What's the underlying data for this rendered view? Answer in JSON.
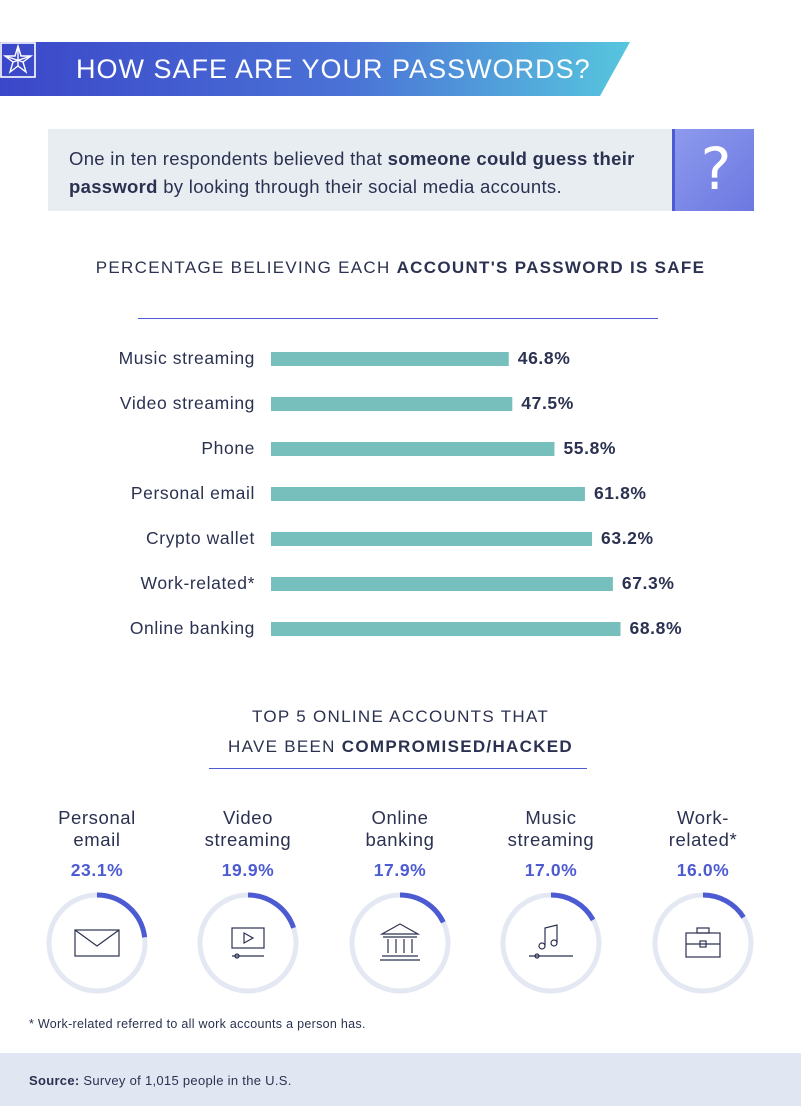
{
  "header": {
    "title": "HOW SAFE ARE YOUR PASSWORDS?"
  },
  "callout": {
    "text_before": "One in ten respondents believed that ",
    "text_bold_1": "someone could guess their",
    "text_bold_2": "password",
    "text_after": " by looking through their social media accounts.",
    "icon_glyph": "?"
  },
  "section1": {
    "title_plain": "PERCENTAGE BELIEVING EACH ",
    "title_bold": "ACCOUNT'S PASSWORD IS SAFE"
  },
  "section2": {
    "title_line1": "TOP 5 ONLINE ACCOUNTS THAT",
    "title_line2_plain": "HAVE BEEN ",
    "title_line2_bold": "COMPROMISED/HACKED"
  },
  "colors": {
    "bar": "#76bfbc",
    "accent": "#4d5bd3",
    "ring_track": "#e3e8f3",
    "text": "#2b3150",
    "banner_from": "#3b47c9",
    "banner_to": "#54c3dd"
  },
  "chart_data": [
    {
      "type": "bar",
      "orientation": "horizontal",
      "title": "PERCENTAGE BELIEVING EACH ACCOUNT'S PASSWORD IS SAFE",
      "categories": [
        "Music streaming",
        "Video streaming",
        "Phone",
        "Personal email",
        "Crypto wallet",
        "Work-related*",
        "Online banking"
      ],
      "values": [
        46.8,
        47.5,
        55.8,
        61.8,
        63.2,
        67.3,
        68.8
      ],
      "value_labels": [
        "46.8%",
        "47.5%",
        "55.8%",
        "61.8%",
        "63.2%",
        "67.3%",
        "68.8%"
      ],
      "xlim": [
        0,
        100
      ],
      "grid": false
    },
    {
      "type": "pie",
      "style": "ring-progress",
      "title": "TOP 5 ONLINE ACCOUNTS THAT HAVE BEEN COMPROMISED/HACKED",
      "items": [
        {
          "label_lines": [
            "Personal",
            "email"
          ],
          "value": 23.1,
          "value_label": "23.1%",
          "icon": "envelope-icon"
        },
        {
          "label_lines": [
            "Video",
            "streaming"
          ],
          "value": 19.9,
          "value_label": "19.9%",
          "icon": "video-player-icon"
        },
        {
          "label_lines": [
            "Online",
            "banking"
          ],
          "value": 17.9,
          "value_label": "17.9%",
          "icon": "bank-icon"
        },
        {
          "label_lines": [
            "Music",
            "streaming"
          ],
          "value": 17.0,
          "value_label": "17.0%",
          "icon": "music-player-icon"
        },
        {
          "label_lines": [
            "Work-",
            "related*"
          ],
          "value": 16.0,
          "value_label": "16.0%",
          "icon": "briefcase-icon"
        }
      ]
    }
  ],
  "footnote": "* Work-related referred to all work accounts a person has.",
  "source": {
    "label": "Source:",
    "text": " Survey of 1,015 people in the U.S."
  }
}
